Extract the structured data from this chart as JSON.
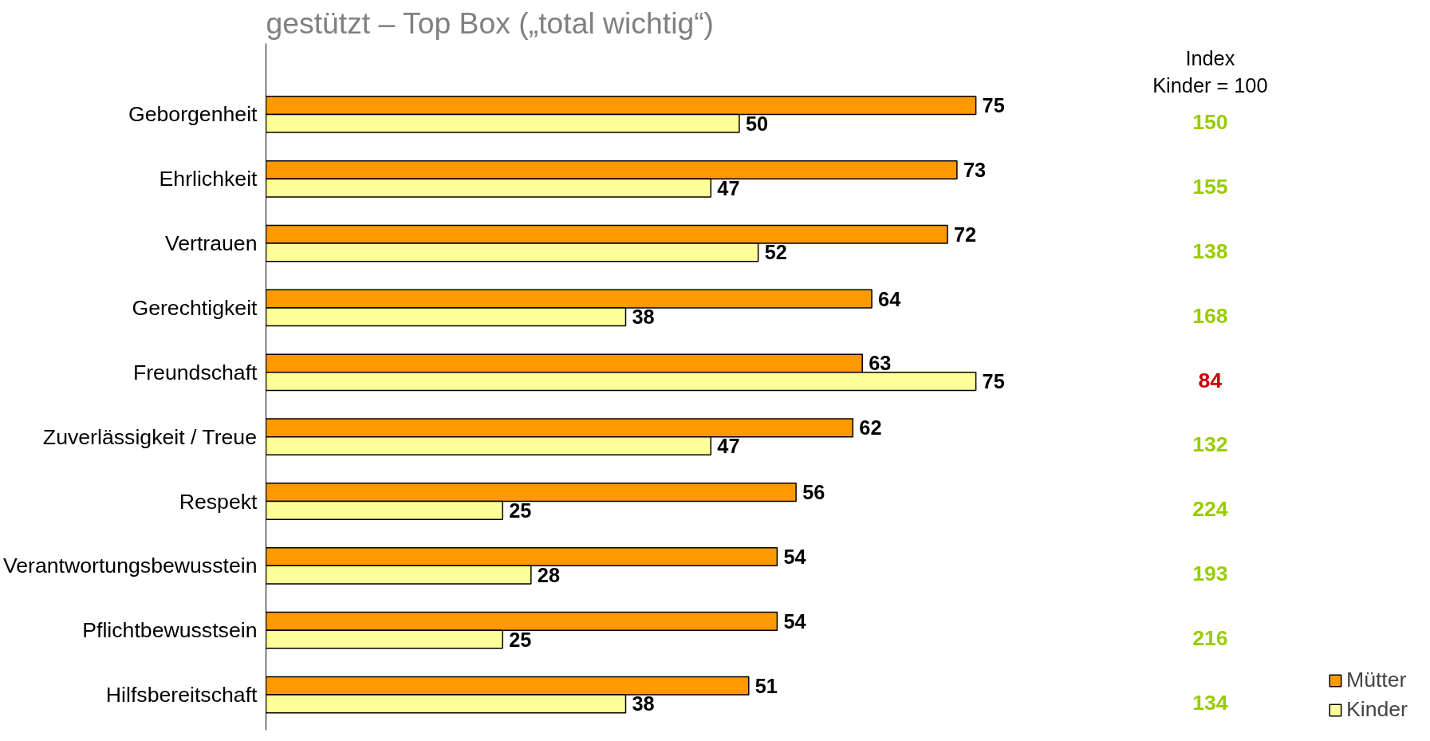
{
  "chart_data": {
    "type": "bar",
    "orientation": "horizontal",
    "subtitle": "gestützt – Top Box („total wichtig“)",
    "categories": [
      "Geborgenheit",
      "Ehrlichkeit",
      "Vertrauen",
      "Gerechtigkeit",
      "Freundschaft",
      "Zuverlässigkeit / Treue",
      "Respekt",
      "Verantwortungsbewusstein",
      "Pflichtbewusstsein",
      "Hilfsbereitschaft"
    ],
    "series": [
      {
        "name": "Mütter",
        "color": "#ff9900",
        "values": [
          75,
          73,
          72,
          64,
          63,
          62,
          56,
          54,
          54,
          51
        ]
      },
      {
        "name": "Kinder",
        "color": "#ffff99",
        "values": [
          50,
          47,
          52,
          38,
          75,
          47,
          25,
          28,
          25,
          38
        ]
      }
    ],
    "data_labels": true,
    "legend": "bottom right",
    "grid": false,
    "annotations": [
      "Index\nKinder = 100",
      "150",
      "155",
      "138",
      "168",
      "84",
      "132",
      "224",
      "193",
      "216",
      "134"
    ]
  }
}
